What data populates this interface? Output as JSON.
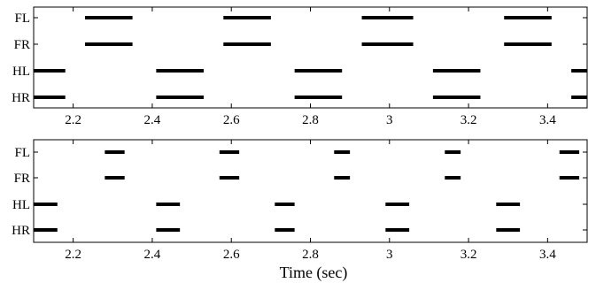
{
  "chart_data": [
    {
      "type": "gait-diagram",
      "legs": [
        "FL",
        "FR",
        "HL",
        "HR"
      ],
      "xlim": [
        2.1,
        3.5
      ],
      "xticks": [
        "2.2",
        "2.4",
        "2.6",
        "2.8",
        "3",
        "3.2",
        "3.4"
      ],
      "xlabel": "",
      "series": [
        {
          "leg": "FL",
          "segments": [
            [
              2.23,
              2.35
            ],
            [
              2.58,
              2.7
            ],
            [
              2.93,
              3.06
            ],
            [
              3.29,
              3.41
            ]
          ]
        },
        {
          "leg": "FR",
          "segments": [
            [
              2.23,
              2.35
            ],
            [
              2.58,
              2.7
            ],
            [
              2.93,
              3.06
            ],
            [
              3.29,
              3.41
            ]
          ]
        },
        {
          "leg": "HL",
          "segments": [
            [
              2.1,
              2.18
            ],
            [
              2.41,
              2.53
            ],
            [
              2.76,
              2.88
            ],
            [
              3.11,
              3.23
            ],
            [
              3.46,
              3.5
            ]
          ]
        },
        {
          "leg": "HR",
          "segments": [
            [
              2.1,
              2.18
            ],
            [
              2.41,
              2.53
            ],
            [
              2.76,
              2.88
            ],
            [
              3.11,
              3.23
            ],
            [
              3.46,
              3.5
            ]
          ]
        }
      ]
    },
    {
      "type": "gait-diagram",
      "legs": [
        "FL",
        "FR",
        "HL",
        "HR"
      ],
      "xlim": [
        2.1,
        3.5
      ],
      "xticks": [
        "2.2",
        "2.4",
        "2.6",
        "2.8",
        "3",
        "3.2",
        "3.4"
      ],
      "xlabel": "Time (sec)",
      "series": [
        {
          "leg": "FL",
          "segments": [
            [
              2.28,
              2.33
            ],
            [
              2.57,
              2.62
            ],
            [
              2.86,
              2.9
            ],
            [
              3.14,
              3.18
            ],
            [
              3.43,
              3.48
            ]
          ]
        },
        {
          "leg": "FR",
          "segments": [
            [
              2.28,
              2.33
            ],
            [
              2.57,
              2.62
            ],
            [
              2.86,
              2.9
            ],
            [
              3.14,
              3.18
            ],
            [
              3.43,
              3.48
            ]
          ]
        },
        {
          "leg": "HL",
          "segments": [
            [
              2.1,
              2.16
            ],
            [
              2.41,
              2.47
            ],
            [
              2.71,
              2.76
            ],
            [
              2.99,
              3.05
            ],
            [
              3.27,
              3.33
            ]
          ]
        },
        {
          "leg": "HR",
          "segments": [
            [
              2.1,
              2.16
            ],
            [
              2.41,
              2.47
            ],
            [
              2.71,
              2.76
            ],
            [
              2.99,
              3.05
            ],
            [
              3.27,
              3.33
            ]
          ]
        }
      ]
    }
  ]
}
